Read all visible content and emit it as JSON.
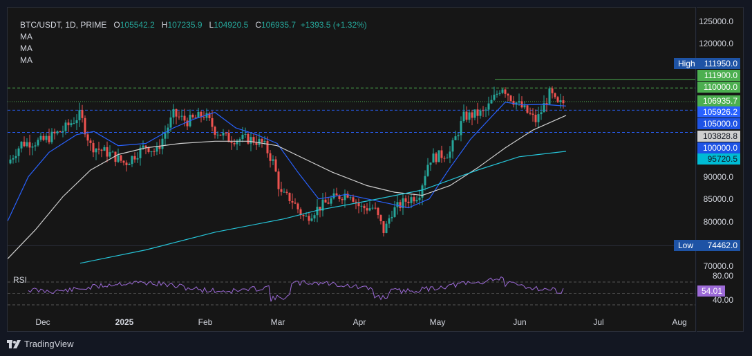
{
  "legend": {
    "symbol": "BTC/USDT, 1D, PRIME",
    "o_label": "O",
    "o_value": "105542.2",
    "h_label": "H",
    "h_value": "107235.9",
    "l_label": "L",
    "l_value": "104920.5",
    "c_label": "C",
    "c_value": "106935.7",
    "change": "+1393.5 (+1.32%)",
    "ma1": "MA",
    "ma2": "MA",
    "ma3": "MA"
  },
  "price_axis": [
    "125000.0",
    "120000.0",
    "90000.0",
    "85000.0",
    "80000.0",
    "70000.0"
  ],
  "tags": {
    "high_label": "High",
    "high_value": "111950.0",
    "p111900": "111900.0",
    "p110000": "110000.0",
    "last": "106935.7",
    "p105926": "105926.2",
    "p105000": "105000.0",
    "p103828": "103828.8",
    "p100000": "100000.0",
    "p95720": "95720.5",
    "low_label": "Low",
    "low_value": "74462.0"
  },
  "rsi": {
    "label": "RSI",
    "upper": "80.00",
    "value": "54.01",
    "lower": "40.00"
  },
  "time_axis": [
    "Dec",
    "2025",
    "Feb",
    "Mar",
    "Apr",
    "May",
    "Jun",
    "Jul",
    "Aug"
  ],
  "brand": "TradingView",
  "colors": {
    "up": "#26a69a",
    "down": "#ef5350",
    "ma_fast": "#2962ff",
    "ma_mid": "#cfcfcf",
    "ma_slow": "#26c6da",
    "rsi": "#9c6ad7"
  },
  "chart_data": {
    "type": "candlestick",
    "symbol": "BTC/USDT",
    "interval": "1D",
    "ylim": [
      70000,
      127000
    ],
    "last_close": 106935.7,
    "series_ma_slow_end": 95720.5,
    "series_ma_mid_end": 103828.8,
    "series_ma_fast_end": 105926.2,
    "period_high": 111950.0,
    "period_low": 74462.0,
    "horizontal_levels": [
      111900.0,
      110000.0,
      105000.0,
      100000.0
    ],
    "rsi_last": 54.01,
    "rsi_bands": [
      80,
      40
    ]
  }
}
